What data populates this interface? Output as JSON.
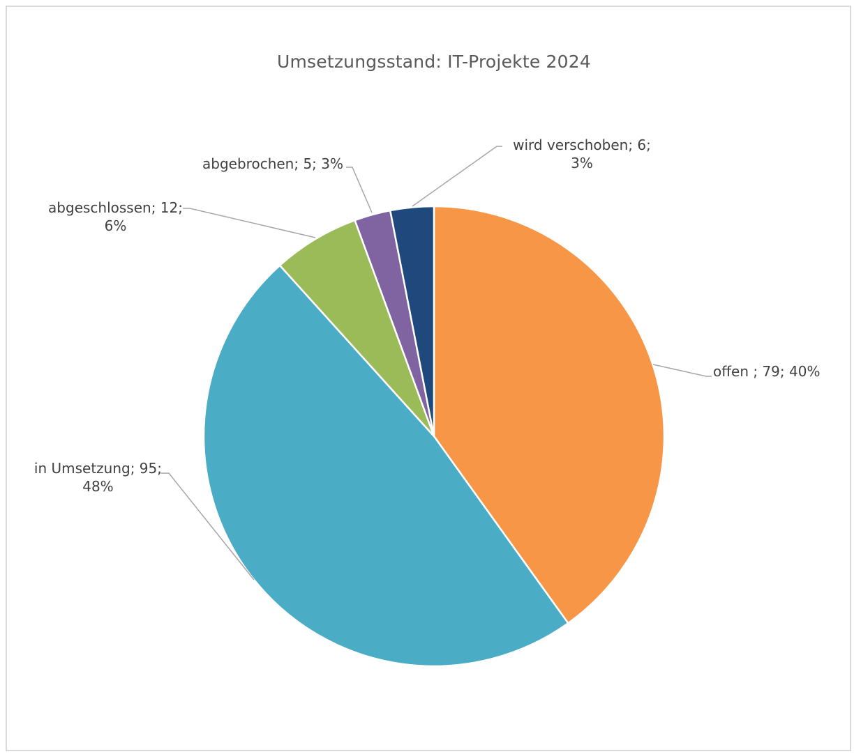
{
  "chart_data": {
    "type": "pie",
    "title": "Umsetzungsstand: IT-Projekte 2024",
    "start_angle_deg": 0,
    "direction": "clockwise",
    "slices": [
      {
        "label": "offen ",
        "value": 79,
        "percent": "40%",
        "color": "#F79646",
        "text": [
          "offen ; 79; 40%"
        ]
      },
      {
        "label": "in Umsetzung",
        "value": 95,
        "percent": "48%",
        "color": "#4BACC6",
        "text": [
          "in Umsetzung; 95;",
          "48%"
        ]
      },
      {
        "label": "abgeschlossen",
        "value": 12,
        "percent": "6%",
        "color": "#9BBB59",
        "text": [
          "abgeschlossen; 12;",
          "6%"
        ]
      },
      {
        "label": "abgebrochen",
        "value": 5,
        "percent": "3%",
        "color": "#8064A2",
        "text": [
          "abgebrochen; 5; 3%"
        ]
      },
      {
        "label": "wird verschoben",
        "value": 6,
        "percent": "3%",
        "color": "#1F497D",
        "text": [
          "wird verschoben; 6;",
          "3%"
        ]
      }
    ]
  }
}
